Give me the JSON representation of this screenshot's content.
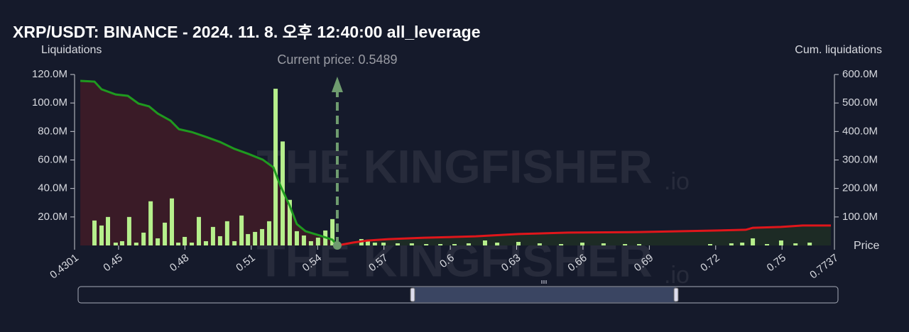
{
  "chart_data": {
    "type": "bar",
    "title": "XRP/USDT: BINANCE - 2024. 11. 8. 오후 12:40:00 all_leverage",
    "y_label": "Liquidations",
    "y2_label": "Cum. liquidations",
    "x_label": "Price",
    "annotation": "Current price: 0.5489",
    "current_price": 0.5489,
    "watermark": "THE KINGFISHER",
    "watermark_suffix": ".io",
    "xlim": [
      0.4301,
      0.7737
    ],
    "xticks": [
      0.4301,
      0.45,
      0.48,
      0.51,
      0.54,
      0.57,
      0.6,
      0.63,
      0.66,
      0.69,
      0.72,
      0.75,
      0.7737
    ],
    "ylim": [
      0,
      120000000
    ],
    "yticks": [
      {
        "value": 20000000,
        "label": "20.0M"
      },
      {
        "value": 40000000,
        "label": "40.0M"
      },
      {
        "value": 60000000,
        "label": "60.0M"
      },
      {
        "value": 80000000,
        "label": "80.0M"
      },
      {
        "value": 100000000,
        "label": "100.0M"
      },
      {
        "value": 120000000,
        "label": "120.0M"
      }
    ],
    "y2lim": [
      0,
      600000000
    ],
    "y2ticks": [
      {
        "value": 100000000,
        "label": "100.0M"
      },
      {
        "value": 200000000,
        "label": "200.0M"
      },
      {
        "value": 300000000,
        "label": "300.0M"
      },
      {
        "value": 400000000,
        "label": "400.0M"
      },
      {
        "value": 500000000,
        "label": "500.0M"
      },
      {
        "value": 600000000,
        "label": "600.0M"
      }
    ],
    "bars": {
      "color": "#b6ef8c",
      "x": [
        0.4391,
        0.4423,
        0.4452,
        0.4487,
        0.4516,
        0.4548,
        0.458,
        0.4613,
        0.4645,
        0.4677,
        0.4709,
        0.4741,
        0.477,
        0.4799,
        0.4831,
        0.4863,
        0.4895,
        0.4927,
        0.4959,
        0.4991,
        0.5024,
        0.5056,
        0.5085,
        0.5117,
        0.5149,
        0.5181,
        0.521,
        0.5242,
        0.5274,
        0.5306,
        0.5338,
        0.537,
        0.5402,
        0.5435,
        0.5467,
        0.5598,
        0.5627,
        0.5659,
        0.5698,
        0.5762,
        0.5826,
        0.5891,
        0.5955,
        0.6019,
        0.6083,
        0.6157,
        0.6212,
        0.6308,
        0.6404,
        0.6501,
        0.6597,
        0.6693,
        0.679,
        0.6854,
        0.7175,
        0.7271,
        0.732,
        0.7368,
        0.7432,
        0.7496,
        0.7561,
        0.7625
      ],
      "values": [
        17500000,
        14000000,
        20000000,
        2000000,
        3000000,
        20000000,
        2000000,
        9000000,
        31000000,
        5000000,
        16000000,
        33000000,
        2000000,
        6000000,
        2000000,
        20000000,
        3000000,
        13000000,
        6500000,
        17000000,
        3000000,
        21000000,
        8000000,
        9500000,
        11500000,
        17000000,
        110000000,
        73000000,
        32000000,
        10000000,
        7000000,
        3000000,
        5500000,
        10500000,
        18500000,
        4500000,
        4000000,
        2000000,
        2000000,
        1500000,
        1500000,
        1000000,
        1000000,
        1000000,
        1500000,
        3500000,
        2000000,
        2500000,
        1500000,
        1000000,
        2000000,
        1500000,
        1000000,
        1000000,
        1000000,
        1500000,
        2000000,
        5000000,
        1000000,
        3500000,
        1500000,
        2000000
      ]
    },
    "series": [
      {
        "axis": "y2",
        "color": "#1f9a1f",
        "fill": "#3a1b27",
        "x": [
          0.4327,
          0.4391,
          0.4423,
          0.4487,
          0.4542,
          0.459,
          0.4638,
          0.4677,
          0.4735,
          0.4773,
          0.4831,
          0.4895,
          0.4959,
          0.5024,
          0.5088,
          0.5152,
          0.52,
          0.5232,
          0.5274,
          0.5306,
          0.5345,
          0.5409,
          0.5467,
          0.5489
        ],
        "values": [
          577500000,
          575000000,
          548000000,
          530000000,
          525000000,
          498000000,
          488000000,
          463000000,
          438000000,
          408000000,
          398000000,
          381000000,
          363000000,
          339000000,
          321000000,
          301000000,
          274000000,
          209000000,
          139000000,
          75000000,
          50000000,
          35000000,
          20000000,
          0
        ]
      },
      {
        "axis": "y2",
        "color": "#e0161b",
        "fill": "#1d2b25",
        "x": [
          0.5489,
          0.5559,
          0.5624,
          0.572,
          0.5881,
          0.6115,
          0.6308,
          0.6533,
          0.6854,
          0.7175,
          0.7336,
          0.7368,
          0.7496,
          0.7593,
          0.7721
        ],
        "values": [
          0,
          10000000,
          17000000,
          22000000,
          27000000,
          32000000,
          40000000,
          45000000,
          47000000,
          52000000,
          55000000,
          62000000,
          65000000,
          70000000,
          70000000
        ]
      }
    ]
  }
}
